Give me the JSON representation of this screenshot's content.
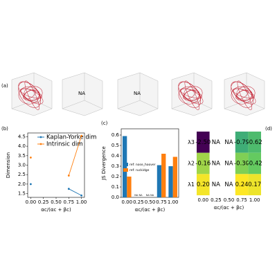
{
  "chart_data": [
    {
      "type": "attractor3d",
      "panel_label": "(a)",
      "annotations": [
        null,
        "NA",
        "NA",
        null,
        null
      ]
    },
    {
      "type": "line",
      "panel_label": "(b)",
      "x_label": "αc/(αc + βc)",
      "y_label": "Dimension",
      "x": [
        0,
        0.25,
        0.5,
        0.75,
        1
      ],
      "xlim": [
        -0.06,
        1.06
      ],
      "xticks": [
        {
          "value": 0,
          "label": "0.00"
        },
        {
          "value": 0.25,
          "label": "0.25"
        },
        {
          "value": 0.5,
          "label": "0.50"
        },
        {
          "value": 0.75,
          "label": "0.75"
        },
        {
          "value": 1,
          "label": "1.00"
        }
      ],
      "ylim": [
        1.3,
        4.7
      ],
      "yticks": [
        1.5,
        {
          "value": 2,
          "label": "2.0"
        },
        2.5,
        {
          "value": 3,
          "label": "3.0"
        },
        3.5,
        {
          "value": 4,
          "label": "4.0"
        },
        4.5
      ],
      "legend": "upper right",
      "series": [
        {
          "name": "Kaplan-Yorke dim",
          "color": "#1f77b4",
          "values": [
            2.0,
            null,
            null,
            1.75,
            1.4
          ]
        },
        {
          "name": "Intrinsic dim",
          "color": "#ff7f0e",
          "values": [
            3.4,
            null,
            null,
            2.45,
            4.55
          ]
        }
      ]
    },
    {
      "type": "bar",
      "panel_label": "(c)",
      "x_label": "αc/(αc + βc)",
      "y_label": "JS Divergence",
      "categories": [
        "0.00",
        "0.25",
        "0.50",
        "0.75",
        "1.00"
      ],
      "na_label": "NA",
      "ylim": [
        0,
        0.66
      ],
      "yticks": [
        {
          "value": 0,
          "label": "0.0"
        },
        0.1,
        0.2,
        0.3,
        0.4,
        0.5,
        0.6
      ],
      "legend": "center left",
      "series": [
        {
          "name": "ref: nose_hoover",
          "color": "#1f77b4",
          "values": [
            0.59,
            null,
            null,
            0.31,
            0.3
          ]
        },
        {
          "name": "ref: ruckidge",
          "color": "#ff7f0e",
          "values": [
            0.2,
            null,
            null,
            0.42,
            0.39
          ]
        }
      ]
    },
    {
      "type": "heatmap",
      "panel_label": "(d)",
      "x_label": "αc/(αc + βc)",
      "colormap": "viridis",
      "categories": [
        "0.00",
        "0.25",
        "0.50",
        "0.75",
        "1.00"
      ],
      "rows": [
        "λ3",
        "λ2",
        "λ1"
      ],
      "values": [
        [
          -2.5,
          null,
          null,
          -0.79,
          -0.62
        ],
        [
          -0.16,
          null,
          null,
          -0.3,
          -0.42
        ],
        [
          0.2,
          null,
          null,
          0.24,
          0.17
        ]
      ],
      "value_labels": [
        [
          "-2.50",
          "NA",
          "NA",
          "-0.79",
          "-0.62"
        ],
        [
          "-0.16",
          "NA",
          "NA",
          "-0.30",
          "-0.42"
        ],
        [
          "0.20",
          "NA",
          "NA",
          "0.24",
          "0.17"
        ]
      ]
    }
  ]
}
